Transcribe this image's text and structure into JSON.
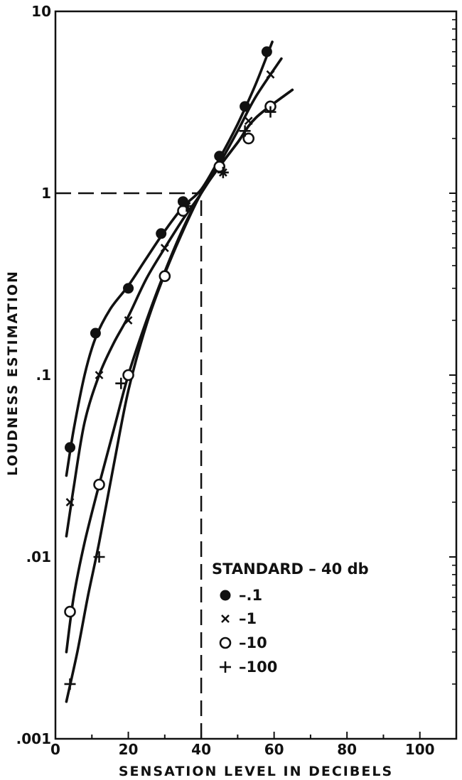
{
  "chart_data": {
    "type": "line",
    "xlabel": "SENSATION LEVEL IN DECIBELS",
    "ylabel": "LOUDNESS ESTIMATION",
    "x_scale": "linear",
    "y_scale": "log",
    "xlim": [
      0,
      110
    ],
    "ylim": [
      0.001,
      10
    ],
    "x_ticks": [
      0,
      20,
      40,
      60,
      80,
      100
    ],
    "x_tick_labels": [
      "0",
      "20",
      "40",
      "60",
      "80",
      "100"
    ],
    "y_ticks": [
      0.001,
      0.01,
      0.1,
      1,
      10
    ],
    "y_tick_labels": [
      ".001",
      ".01",
      ".1",
      "1",
      "10"
    ],
    "grid": false,
    "reference_lines": [
      {
        "style": "dashed",
        "from": [
          0,
          1
        ],
        "to": [
          40,
          1
        ]
      },
      {
        "style": "dashed",
        "from": [
          40,
          0.001
        ],
        "to": [
          40,
          1
        ]
      }
    ],
    "legend": {
      "title": "STANDARD – 40 db",
      "placement": "lower-right"
    },
    "series": [
      {
        "name": "-.1",
        "marker": "filled-circle",
        "points": [
          [
            4,
            0.04
          ],
          [
            11,
            0.17
          ],
          [
            20,
            0.3
          ],
          [
            29,
            0.6
          ],
          [
            35,
            0.9
          ],
          [
            45,
            1.6
          ],
          [
            52,
            3.0
          ],
          [
            58,
            6.0
          ]
        ],
        "curve": [
          [
            3,
            0.028
          ],
          [
            5,
            0.05
          ],
          [
            8,
            0.1
          ],
          [
            11,
            0.16
          ],
          [
            15,
            0.23
          ],
          [
            20,
            0.31
          ],
          [
            25,
            0.44
          ],
          [
            30,
            0.62
          ],
          [
            35,
            0.84
          ],
          [
            40,
            1.05
          ],
          [
            45,
            1.55
          ],
          [
            50,
            2.4
          ],
          [
            55,
            4.0
          ],
          [
            59.5,
            6.8
          ]
        ]
      },
      {
        "name": "-1",
        "marker": "x",
        "points": [
          [
            4,
            0.02
          ],
          [
            12,
            0.1
          ],
          [
            20,
            0.2
          ],
          [
            30,
            0.5
          ],
          [
            36,
            0.85
          ],
          [
            46,
            1.3
          ],
          [
            53,
            2.5
          ],
          [
            59,
            4.5
          ]
        ],
        "curve": [
          [
            3,
            0.013
          ],
          [
            5,
            0.024
          ],
          [
            8,
            0.055
          ],
          [
            12,
            0.1
          ],
          [
            16,
            0.15
          ],
          [
            20,
            0.21
          ],
          [
            25,
            0.34
          ],
          [
            30,
            0.5
          ],
          [
            35,
            0.72
          ],
          [
            40,
            1.0
          ],
          [
            45,
            1.45
          ],
          [
            50,
            2.2
          ],
          [
            55,
            3.4
          ],
          [
            62,
            5.5
          ]
        ]
      },
      {
        "name": "-10",
        "marker": "open-circle",
        "points": [
          [
            4,
            0.005
          ],
          [
            12,
            0.025
          ],
          [
            20,
            0.1
          ],
          [
            30,
            0.35
          ],
          [
            35,
            0.8
          ],
          [
            45,
            1.4
          ],
          [
            53,
            2.0
          ],
          [
            59,
            3.0
          ]
        ],
        "curve": [
          [
            3,
            0.003
          ],
          [
            5,
            0.006
          ],
          [
            8,
            0.012
          ],
          [
            12,
            0.025
          ],
          [
            16,
            0.05
          ],
          [
            20,
            0.1
          ],
          [
            25,
            0.2
          ],
          [
            30,
            0.37
          ],
          [
            35,
            0.64
          ],
          [
            40,
            1.0
          ],
          [
            45,
            1.4
          ],
          [
            50,
            1.9
          ],
          [
            55,
            2.6
          ],
          [
            65,
            3.7
          ]
        ]
      },
      {
        "name": "-100",
        "marker": "plus",
        "points": [
          [
            4,
            0.002
          ],
          [
            12,
            0.01
          ],
          [
            18,
            0.09
          ],
          [
            36,
            0.85
          ],
          [
            46,
            1.3
          ],
          [
            52,
            2.2
          ],
          [
            59,
            2.8
          ]
        ],
        "curve": [
          [
            3,
            0.0016
          ],
          [
            6,
            0.003
          ],
          [
            9,
            0.0062
          ],
          [
            12,
            0.012
          ],
          [
            16,
            0.032
          ],
          [
            20,
            0.082
          ],
          [
            25,
            0.19
          ],
          [
            30,
            0.36
          ],
          [
            35,
            0.62
          ],
          [
            40,
            1.0
          ],
          [
            45,
            1.4
          ],
          [
            50,
            1.9
          ],
          [
            55,
            2.6
          ],
          [
            65,
            3.7
          ]
        ]
      }
    ]
  }
}
